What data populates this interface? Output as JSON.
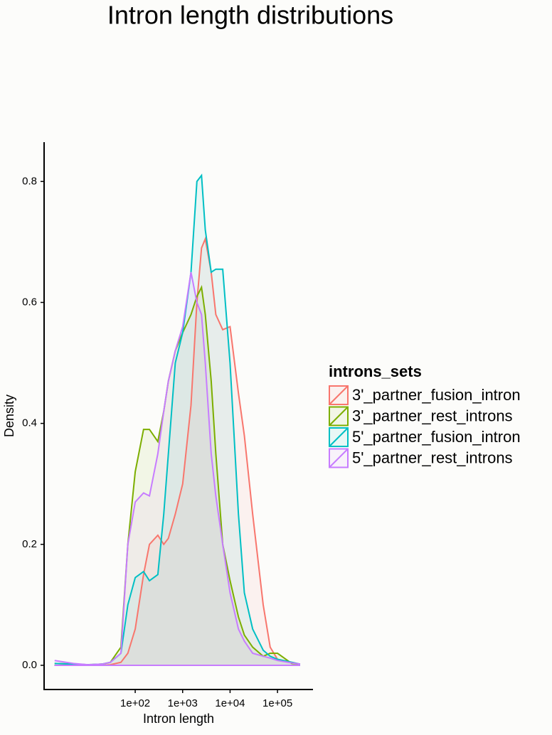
{
  "chart_data": {
    "type": "density",
    "title": "Intron length distributions",
    "x_label": "Intron length",
    "y_label": "Density",
    "legend_title": "introns_sets",
    "legend_position": "right",
    "xscale": "log",
    "grid": false,
    "x": [
      2,
      5,
      10,
      20,
      30,
      50,
      70,
      100,
      150,
      200,
      300,
      400,
      500,
      700,
      1000,
      1500,
      2000,
      2500,
      3000,
      4000,
      5000,
      7000,
      10000,
      15000,
      20000,
      30000,
      50000,
      70000,
      100000,
      200000,
      300000
    ],
    "series": [
      {
        "name": "3'_partner_fusion_intron",
        "color": "#F8766D",
        "values": [
          0,
          0,
          0,
          0,
          0.001,
          0.005,
          0.02,
          0.06,
          0.15,
          0.2,
          0.215,
          0.2,
          0.21,
          0.25,
          0.3,
          0.43,
          0.6,
          0.69,
          0.705,
          0.65,
          0.58,
          0.555,
          0.56,
          0.45,
          0.38,
          0.25,
          0.1,
          0.03,
          0.01,
          0.005,
          0.002
        ]
      },
      {
        "name": "3'_partner_rest_introns",
        "color": "#7CAE00",
        "values": [
          0.003,
          0.002,
          0.001,
          0.002,
          0.005,
          0.03,
          0.2,
          0.32,
          0.39,
          0.39,
          0.37,
          0.42,
          0.47,
          0.52,
          0.55,
          0.58,
          0.61,
          0.625,
          0.58,
          0.47,
          0.35,
          0.2,
          0.14,
          0.08,
          0.05,
          0.03,
          0.015,
          0.02,
          0.02,
          0.003,
          0.002
        ]
      },
      {
        "name": "5'_partner_fusion_intron",
        "color": "#00BFC4",
        "values": [
          0.003,
          0.002,
          0.001,
          0.002,
          0.005,
          0.02,
          0.1,
          0.145,
          0.155,
          0.14,
          0.15,
          0.25,
          0.35,
          0.5,
          0.55,
          0.65,
          0.8,
          0.81,
          0.72,
          0.65,
          0.655,
          0.655,
          0.5,
          0.25,
          0.12,
          0.06,
          0.025,
          0.015,
          0.01,
          0.005,
          0.002
        ]
      },
      {
        "name": "5'_partner_rest_introns",
        "color": "#C77CFF",
        "values": [
          0.008,
          0.003,
          0.001,
          0.002,
          0.005,
          0.02,
          0.2,
          0.27,
          0.285,
          0.28,
          0.35,
          0.42,
          0.47,
          0.52,
          0.56,
          0.65,
          0.6,
          0.58,
          0.5,
          0.35,
          0.28,
          0.2,
          0.12,
          0.06,
          0.04,
          0.02,
          0.015,
          0.012,
          0.008,
          0.004,
          0.002
        ]
      }
    ],
    "xlim": [
      1.2,
      560000
    ],
    "xticks": [
      {
        "value": 100,
        "label": "1e+02"
      },
      {
        "value": 1000,
        "label": "1e+03"
      },
      {
        "value": 10000,
        "label": "1e+04"
      },
      {
        "value": 100000,
        "label": "1e+05"
      }
    ],
    "ylim": [
      -0.04,
      0.865
    ],
    "yticks": [
      {
        "value": 0,
        "label": "0.0"
      },
      0.2,
      0.4,
      0.6,
      0.8
    ]
  }
}
